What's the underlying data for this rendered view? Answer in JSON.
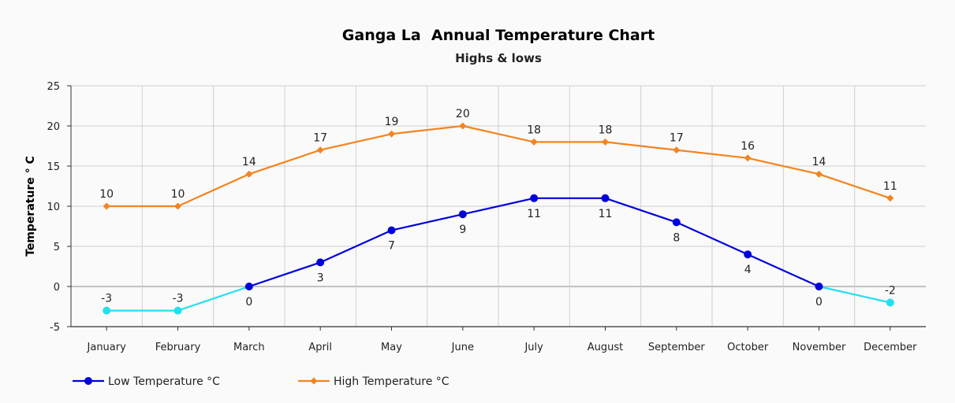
{
  "chart_data": {
    "type": "line",
    "title": "Ganga La  Annual Temperature Chart",
    "subtitle": "Highs & lows",
    "xlabel": "",
    "ylabel": "Temperature ° C",
    "ylim": [
      -5,
      25
    ],
    "yticks": [
      -5,
      0,
      5,
      10,
      15,
      20,
      25
    ],
    "grid": true,
    "legend_position": "bottom-left",
    "categories": [
      "January",
      "February",
      "March",
      "April",
      "May",
      "June",
      "July",
      "August",
      "September",
      "October",
      "November",
      "December"
    ],
    "series": [
      {
        "name": "Low Temperature °C",
        "values": [
          -3,
          -3,
          0,
          3,
          7,
          9,
          11,
          11,
          8,
          4,
          0,
          -2
        ],
        "color": "#0000dd",
        "negative_color": "#22e0f0",
        "marker": "circle",
        "label_position": "below"
      },
      {
        "name": "High Temperature °C",
        "values": [
          10,
          10,
          14,
          17,
          19,
          20,
          18,
          18,
          17,
          16,
          14,
          11
        ],
        "color": "#f5841f",
        "marker": "diamond",
        "label_position": "above"
      }
    ]
  }
}
